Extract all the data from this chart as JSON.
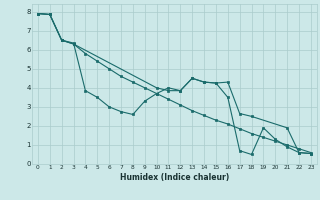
{
  "xlabel": "Humidex (Indice chaleur)",
  "bg_color": "#cce8e8",
  "grid_color": "#aacccc",
  "line_color": "#1a6b6b",
  "xlim": [
    -0.5,
    23.5
  ],
  "ylim": [
    0,
    8.4
  ],
  "xticks": [
    0,
    1,
    2,
    3,
    4,
    5,
    6,
    7,
    8,
    9,
    10,
    11,
    12,
    13,
    14,
    15,
    16,
    17,
    18,
    19,
    20,
    21,
    22,
    23
  ],
  "yticks": [
    0,
    1,
    2,
    3,
    4,
    5,
    6,
    7,
    8
  ],
  "series1_x": [
    0,
    1,
    2,
    3,
    4,
    5,
    6,
    7,
    8,
    9,
    10,
    11,
    12,
    13,
    14,
    15,
    16,
    17,
    18,
    19,
    20,
    21,
    22,
    23
  ],
  "series1_y": [
    7.9,
    7.85,
    6.5,
    6.35,
    3.85,
    3.5,
    3.0,
    2.75,
    2.6,
    3.3,
    3.7,
    4.0,
    3.85,
    4.5,
    4.3,
    4.25,
    3.5,
    0.7,
    0.5,
    1.9,
    1.3,
    0.9,
    0.6,
    0.55
  ],
  "series2_x": [
    0,
    1,
    2,
    3,
    4,
    5,
    6,
    7,
    8,
    9,
    10,
    11,
    12,
    13,
    14,
    15,
    16,
    17,
    18,
    19,
    20,
    21,
    22,
    23
  ],
  "series2_y": [
    7.9,
    7.85,
    6.5,
    6.3,
    5.8,
    5.4,
    5.0,
    4.6,
    4.3,
    4.0,
    3.7,
    3.4,
    3.1,
    2.8,
    2.55,
    2.3,
    2.1,
    1.85,
    1.6,
    1.4,
    1.2,
    1.0,
    0.8,
    0.6
  ],
  "series3_x": [
    0,
    1,
    2,
    3,
    10,
    11,
    12,
    13,
    14,
    15,
    16,
    17,
    18,
    21,
    22,
    23
  ],
  "series3_y": [
    7.9,
    7.85,
    6.5,
    6.3,
    4.0,
    3.85,
    3.85,
    4.5,
    4.3,
    4.25,
    4.3,
    2.65,
    2.5,
    1.9,
    0.6,
    0.55
  ]
}
